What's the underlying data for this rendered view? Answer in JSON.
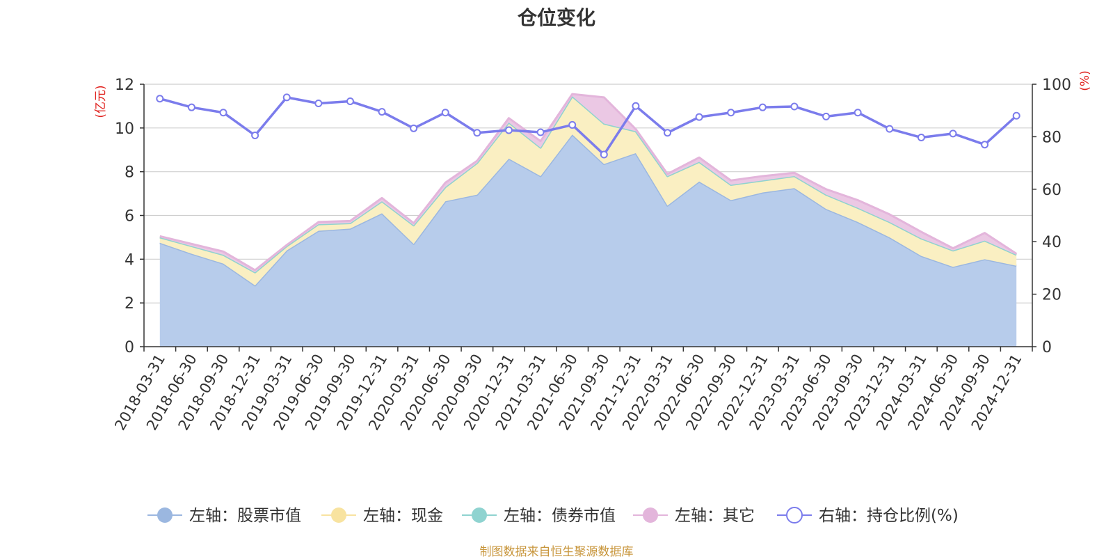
{
  "chart_data": {
    "type": "area",
    "title": "仓位变化",
    "left_axis": {
      "unit_label": "(亿元)",
      "range": [
        0,
        12
      ],
      "ticks": [
        0,
        2,
        4,
        6,
        8,
        10,
        12
      ]
    },
    "right_axis": {
      "unit_label": "(%)",
      "range": [
        0,
        100
      ],
      "ticks": [
        0,
        20,
        40,
        60,
        80,
        100
      ]
    },
    "grid": true,
    "legend_position": "bottom",
    "categories": [
      "2018-03-31",
      "2018-06-30",
      "2018-09-30",
      "2018-12-31",
      "2019-03-31",
      "2019-06-30",
      "2019-09-30",
      "2019-12-31",
      "2020-03-31",
      "2020-06-30",
      "2020-09-30",
      "2020-12-31",
      "2021-03-31",
      "2021-06-30",
      "2021-09-30",
      "2021-12-31",
      "2022-03-31",
      "2022-06-30",
      "2022-09-30",
      "2022-12-31",
      "2023-03-31",
      "2023-06-30",
      "2023-09-30",
      "2023-12-31",
      "2024-03-31",
      "2024-06-30",
      "2024-09-30",
      "2024-12-31"
    ],
    "stacked_series": [
      {
        "name": "左轴：股票市值",
        "color": "#9bb7e0",
        "fill": "#b7cceb",
        "values": [
          4.75,
          4.25,
          3.8,
          2.8,
          4.4,
          5.3,
          5.4,
          6.1,
          4.7,
          6.65,
          6.95,
          8.6,
          7.8,
          9.7,
          8.35,
          8.85,
          6.45,
          7.55,
          6.7,
          7.05,
          7.25,
          6.3,
          5.7,
          5.0,
          4.15,
          3.65,
          4.0,
          3.7
        ]
      },
      {
        "name": "左轴：现金",
        "color": "#f8e3a0",
        "fill": "#faefc2",
        "values": [
          0.25,
          0.35,
          0.4,
          0.6,
          0.2,
          0.3,
          0.25,
          0.55,
          0.85,
          0.65,
          1.45,
          1.65,
          1.3,
          1.75,
          1.85,
          1.0,
          1.35,
          0.9,
          0.7,
          0.55,
          0.55,
          0.65,
          0.65,
          0.7,
          0.8,
          0.75,
          0.85,
          0.5
        ]
      },
      {
        "name": "左轴：债券市值",
        "color": "#8fd3d0",
        "fill": "#8fd3d0",
        "values": [
          0,
          0,
          0,
          0,
          0,
          0,
          0,
          0,
          0,
          0,
          0,
          0,
          0,
          0,
          0,
          0,
          0,
          0,
          0,
          0,
          0,
          0,
          0,
          0,
          0,
          0,
          0,
          0
        ]
      },
      {
        "name": "左轴：其它",
        "color": "#e3b5db",
        "fill": "#ebc8e4",
        "values": [
          0.05,
          0.1,
          0.15,
          0.1,
          0.05,
          0.1,
          0.1,
          0.15,
          0.1,
          0.2,
          0.1,
          0.2,
          0.3,
          0.1,
          1.2,
          0.1,
          0.1,
          0.2,
          0.2,
          0.2,
          0.15,
          0.25,
          0.35,
          0.35,
          0.3,
          0.1,
          0.35,
          0.05
        ]
      }
    ],
    "line_series": {
      "name": "右轴：持仓比例(%)",
      "color": "#7b7cec",
      "values": [
        94.5,
        91.2,
        89.2,
        80.5,
        95,
        92.7,
        93.5,
        89.5,
        83.2,
        89.2,
        81.5,
        82.5,
        81.7,
        84.5,
        73.2,
        91.7,
        81.5,
        87.5,
        89.2,
        91.2,
        91.5,
        87.7,
        89.2,
        83,
        79.7,
        81.2,
        77,
        88
      ]
    },
    "legend": [
      {
        "label": "左轴：股票市值",
        "marker": "filled-circle",
        "color": "#9bb7e0"
      },
      {
        "label": "左轴：现金",
        "marker": "filled-circle",
        "color": "#f8e3a0"
      },
      {
        "label": "左轴：债券市值",
        "marker": "filled-circle",
        "color": "#8fd3d0"
      },
      {
        "label": "左轴：其它",
        "marker": "filled-circle",
        "color": "#e3b5db"
      },
      {
        "label": "右轴：持仓比例(%)",
        "marker": "hollow-circle",
        "color": "#7b7cec"
      }
    ],
    "source_note": "制图数据来自恒生聚源数据库"
  },
  "colors": {
    "axis_unit": "#e0201c",
    "text": "#333333",
    "grid": "#cfcfcf",
    "axis": "#333333",
    "source": "#c8963c"
  }
}
